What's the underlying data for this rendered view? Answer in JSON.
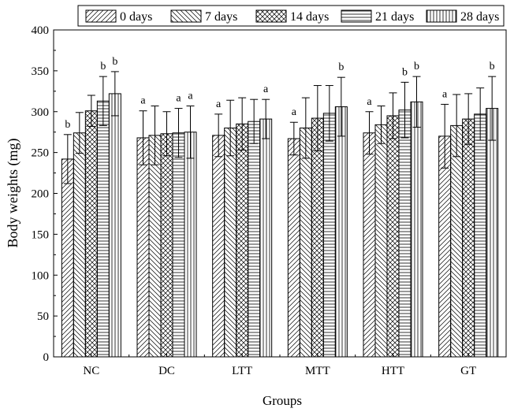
{
  "chart_data": {
    "type": "bar",
    "xlabel": "Groups",
    "ylabel": "Body weights (mg)",
    "ylim": [
      0,
      400
    ],
    "yticks": [
      "0",
      "50",
      "100",
      "150",
      "200",
      "250",
      "300",
      "350",
      "400"
    ],
    "categories": [
      "NC",
      "DC",
      "LTT",
      "MTT",
      "HTT",
      "GT"
    ],
    "legend_position": "top",
    "series": [
      {
        "name": "0 days",
        "pattern": "diag-right",
        "values": [
          242,
          268,
          271,
          267,
          274,
          270
        ],
        "errors": [
          30,
          33,
          26,
          20,
          26,
          39
        ],
        "letters": [
          "b",
          "a",
          "a",
          "a",
          "a",
          "a"
        ]
      },
      {
        "name": "7 days",
        "pattern": "diag-left",
        "values": [
          274,
          271,
          280,
          280,
          284,
          283
        ],
        "errors": [
          25,
          36,
          34,
          37,
          23,
          38
        ],
        "letters": [
          "",
          "",
          "",
          "",
          "",
          ""
        ]
      },
      {
        "name": "14 days",
        "pattern": "crosshatch",
        "values": [
          301,
          273,
          285,
          292,
          295,
          291
        ],
        "errors": [
          19,
          27,
          32,
          40,
          28,
          31
        ],
        "letters": [
          "",
          "",
          "",
          "",
          "",
          ""
        ]
      },
      {
        "name": "21 days",
        "pattern": "horizontal",
        "values": [
          313,
          274,
          288,
          298,
          302,
          297
        ],
        "errors": [
          30,
          30,
          27,
          34,
          34,
          32
        ],
        "letters": [
          "b",
          "a",
          "",
          "",
          "b",
          ""
        ]
      },
      {
        "name": "28 days",
        "pattern": "vertical",
        "values": [
          322,
          275,
          291,
          306,
          312,
          304
        ],
        "errors": [
          27,
          32,
          24,
          36,
          31,
          39
        ],
        "letters": [
          "b",
          "a",
          "a",
          "b",
          "b",
          "b"
        ]
      }
    ]
  }
}
